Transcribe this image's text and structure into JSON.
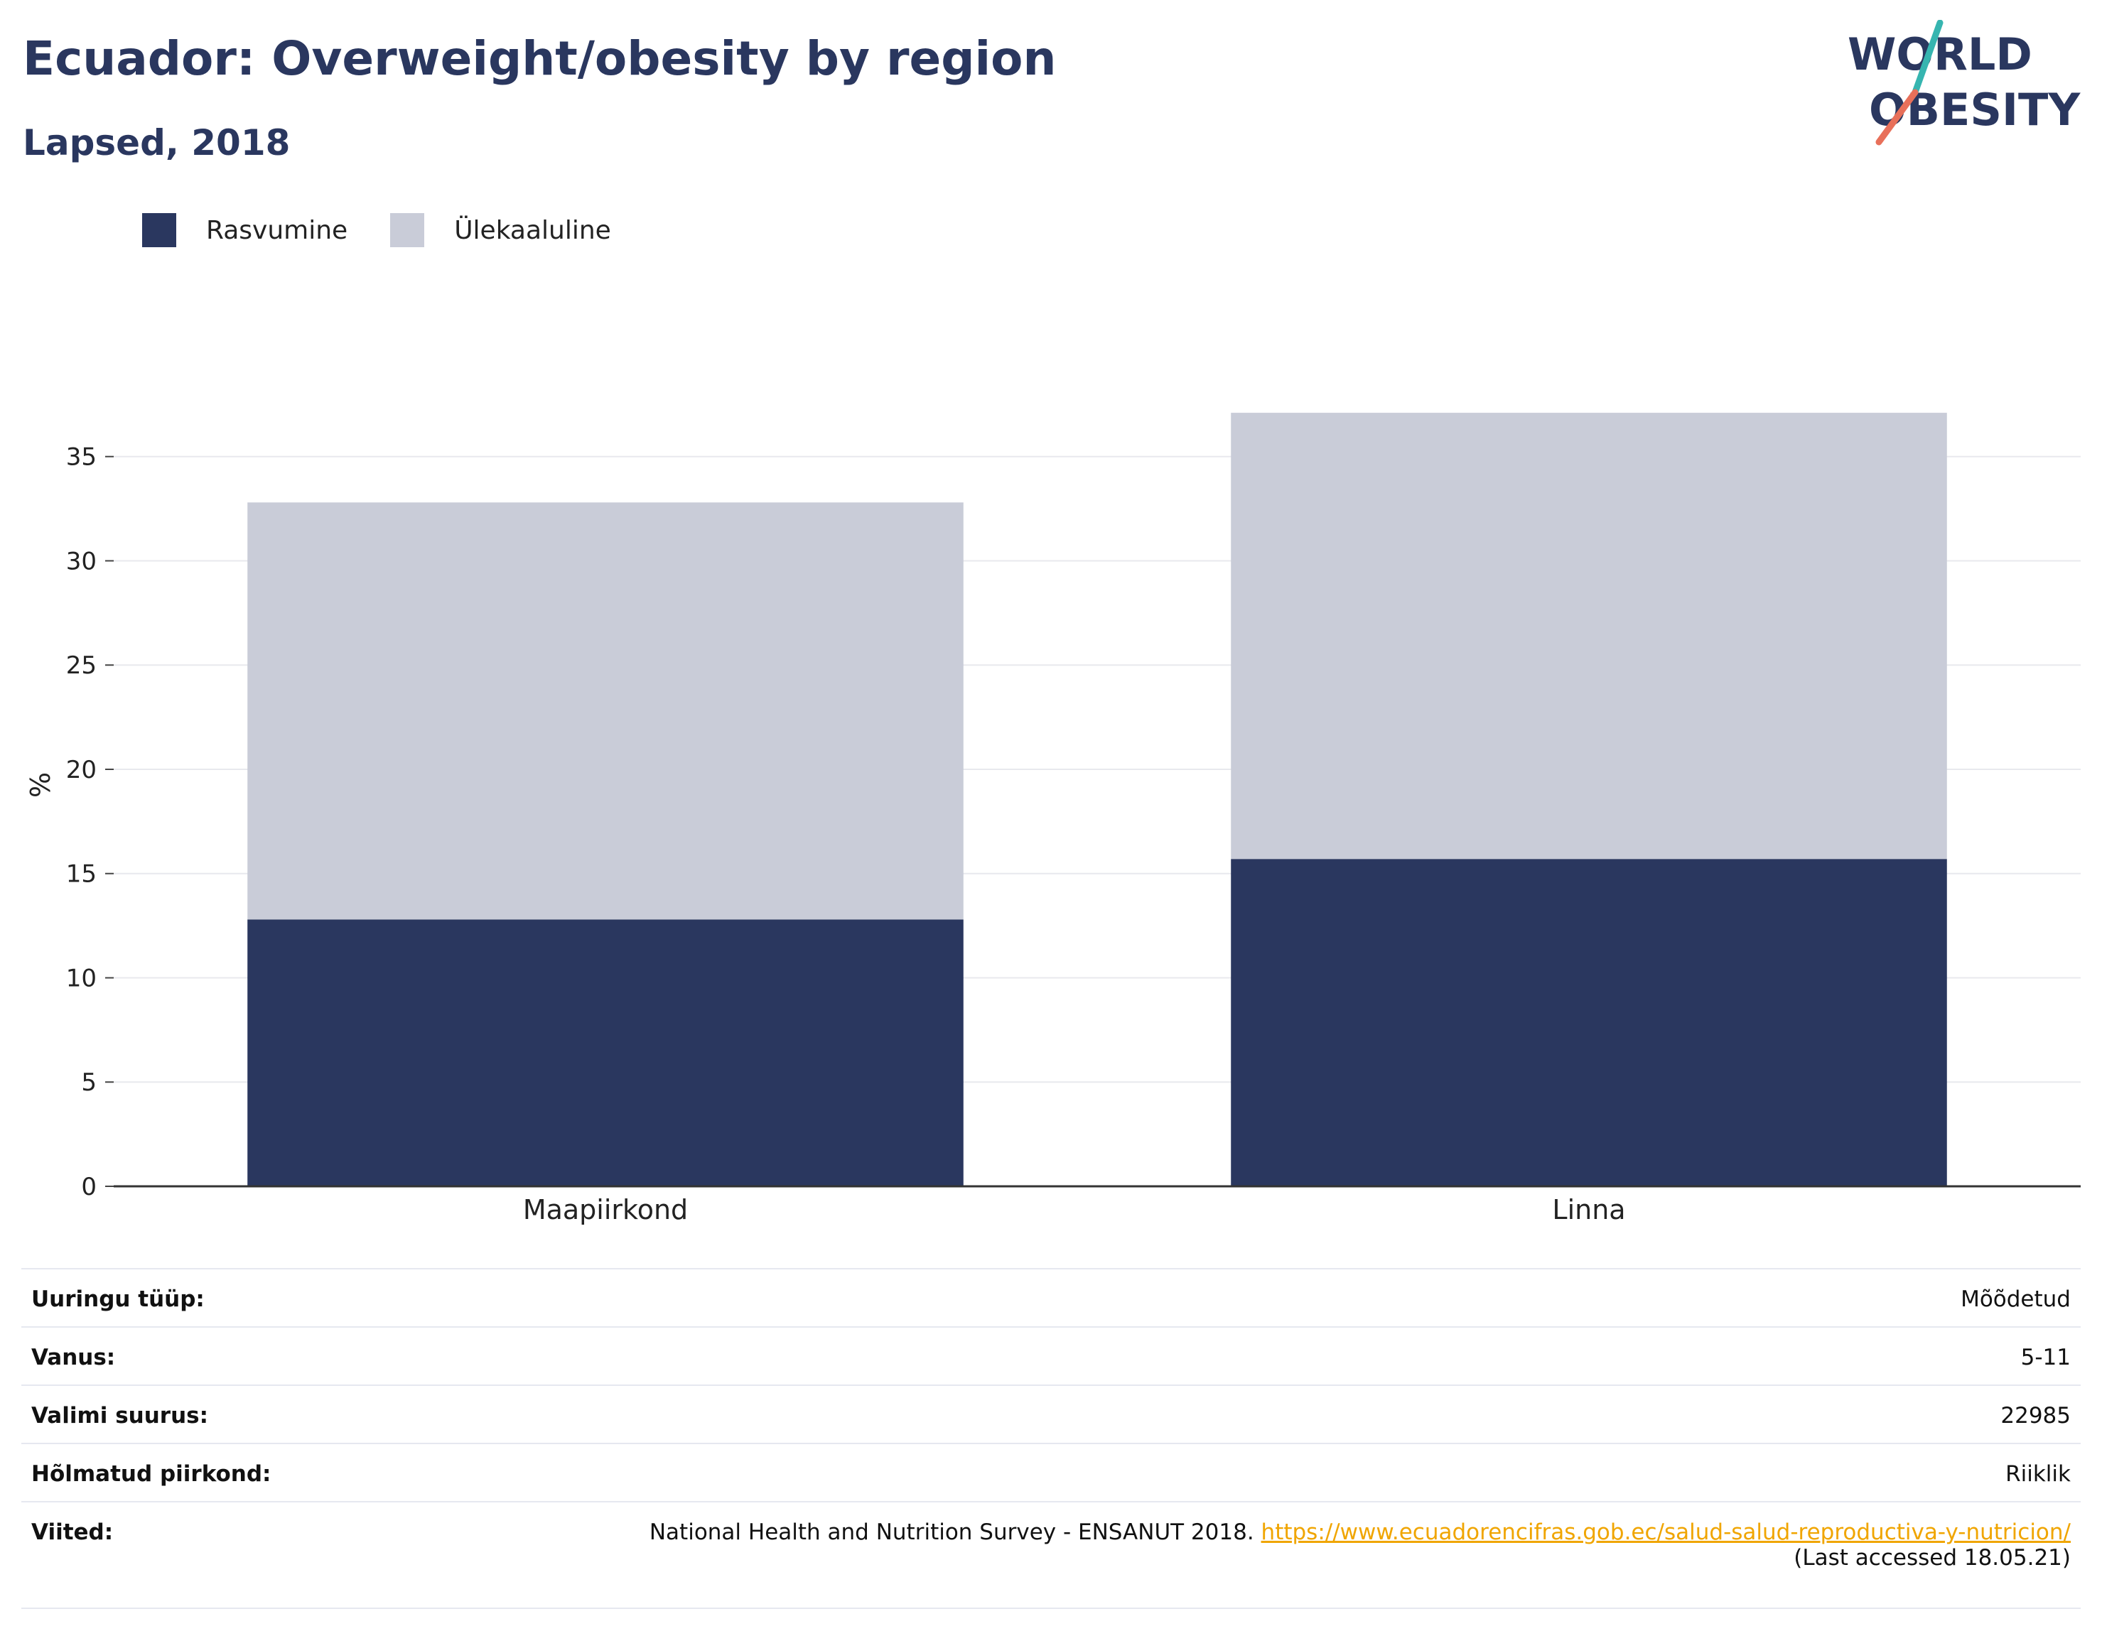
{
  "header": {
    "title": "Ecuador: Overweight/obesity by region",
    "subtitle": "Lapsed, 2018"
  },
  "logo": {
    "line1": "WORLD",
    "line2": "OBESITY"
  },
  "colors": {
    "obesity": "#2a375f",
    "overweight": "#c9ccd8",
    "title": "#2a375f",
    "link": "#f0a500"
  },
  "chart_data": {
    "type": "bar",
    "stacked": true,
    "categories": [
      "Maapiirkond",
      "Linna"
    ],
    "series": [
      {
        "name": "Rasvumine",
        "values": [
          12.8,
          15.7
        ],
        "color": "#2a375f"
      },
      {
        "name": "Ülekaaluline",
        "values": [
          20.0,
          21.4
        ],
        "color": "#c9ccd8"
      }
    ],
    "ylabel": "%",
    "xlabel": "",
    "ylim": [
      0,
      38.5
    ],
    "yticks": [
      "0",
      "5",
      "10",
      "15",
      "20",
      "25",
      "30",
      "35"
    ],
    "grid": true,
    "legend_position": "top-left"
  },
  "info": {
    "rows": [
      {
        "key": "Uuringu tüüp:",
        "value": "Mõõdetud"
      },
      {
        "key": "Vanus:",
        "value": "5-11"
      },
      {
        "key": "Valimi suurus:",
        "value": "22985"
      },
      {
        "key": "Hõlmatud piirkond:",
        "value": "Riiklik"
      }
    ],
    "reference": {
      "key": "Viited:",
      "text": "National Health and Nutrition Survey - ENSANUT 2018. ",
      "link": "https://www.ecuadorencifras.gob.ec/salud-salud-reproductiva-y-nutricion/",
      "accessed": "(Last accessed 18.05.21)"
    }
  }
}
